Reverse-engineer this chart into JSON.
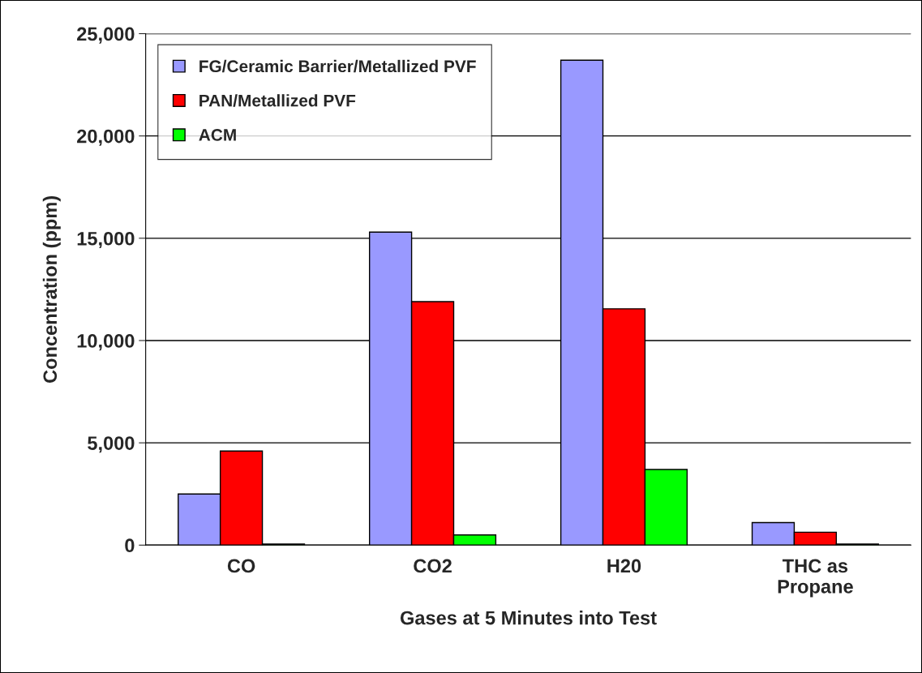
{
  "chart_data": {
    "type": "bar",
    "xlabel": "Gases at 5 Minutes into Test",
    "ylabel": "Concentration (ppm)",
    "categories": [
      "CO",
      "CO2",
      "H20",
      "THC as\nPropane"
    ],
    "series": [
      {
        "name": "FG/Ceramic Barrier/Metallized PVF",
        "color": "#9999ff",
        "values": [
          2500,
          15300,
          23700,
          1100
        ]
      },
      {
        "name": "PAN/Metallized PVF",
        "color": "#ff0000",
        "values": [
          4600,
          11900,
          11550,
          630
        ]
      },
      {
        "name": "ACM",
        "color": "#00ff00",
        "values": [
          50,
          500,
          3700,
          50
        ]
      }
    ],
    "ylim": [
      0,
      25000
    ],
    "yticks": [
      {
        "value": 0,
        "label": "0"
      },
      {
        "value": 5000,
        "label": "5,000"
      },
      {
        "value": 10000,
        "label": "10,000"
      },
      {
        "value": 15000,
        "label": "15,000"
      },
      {
        "value": 20000,
        "label": "20,000"
      },
      {
        "value": 25000,
        "label": "25,000"
      }
    ],
    "grid": "y",
    "legend": "top left"
  }
}
